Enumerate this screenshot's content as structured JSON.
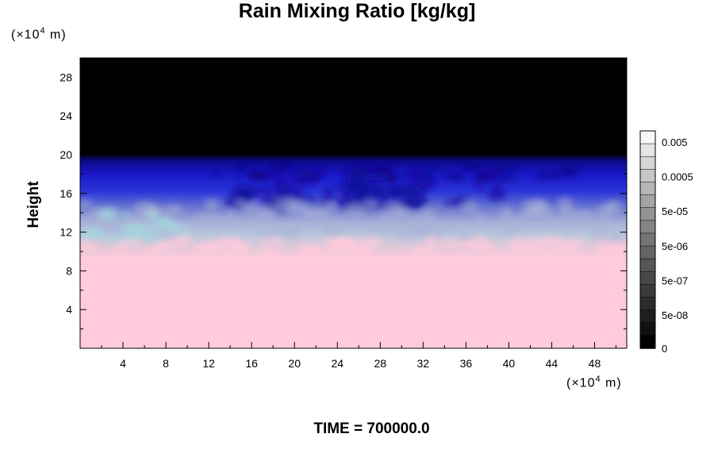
{
  "chart_data": {
    "type": "heatmap",
    "title": "Rain Mixing Ratio [kg/kg]",
    "ylabel": "Height",
    "xlabel": "",
    "x_unit_prefix": "(×10",
    "x_unit_exp": "4",
    "x_unit_suffix": " m)",
    "y_unit_prefix": "(×10",
    "y_unit_exp": "4",
    "y_unit_suffix": " m)",
    "xlim": [
      0,
      51
    ],
    "ylim": [
      0,
      30
    ],
    "x_ticks": [
      4,
      8,
      12,
      16,
      20,
      24,
      28,
      32,
      36,
      40,
      44,
      48
    ],
    "y_ticks": [
      4,
      8,
      12,
      16,
      20,
      24,
      28
    ],
    "colorbar": {
      "labels": [
        "0.005",
        "0.0005",
        "5e-05",
        "5e-06",
        "5e-07",
        "5e-08",
        "0"
      ],
      "colors_top_to_bottom": [
        "#f7f7f7",
        "#e6e6e6",
        "#d6d6d6",
        "#c6c6c6",
        "#b6b6b6",
        "#a4a4a4",
        "#949494",
        "#848484",
        "#747474",
        "#646464",
        "#565656",
        "#484848",
        "#3a3a3a",
        "#2c2c2c",
        "#1e1e1e",
        "#101010",
        "#000000"
      ]
    },
    "layers": {
      "top_color": "#000000",
      "upper_blue": "#1a17c8",
      "deep_blue": "#0c0a9a",
      "mid_blue": "#3d46c8",
      "light_lavender": "#a9b2d8",
      "pale_cyan": "#a4d8dc",
      "bottom_color": "#ffcbdc"
    },
    "time_label": "TIME = 700000.0"
  }
}
